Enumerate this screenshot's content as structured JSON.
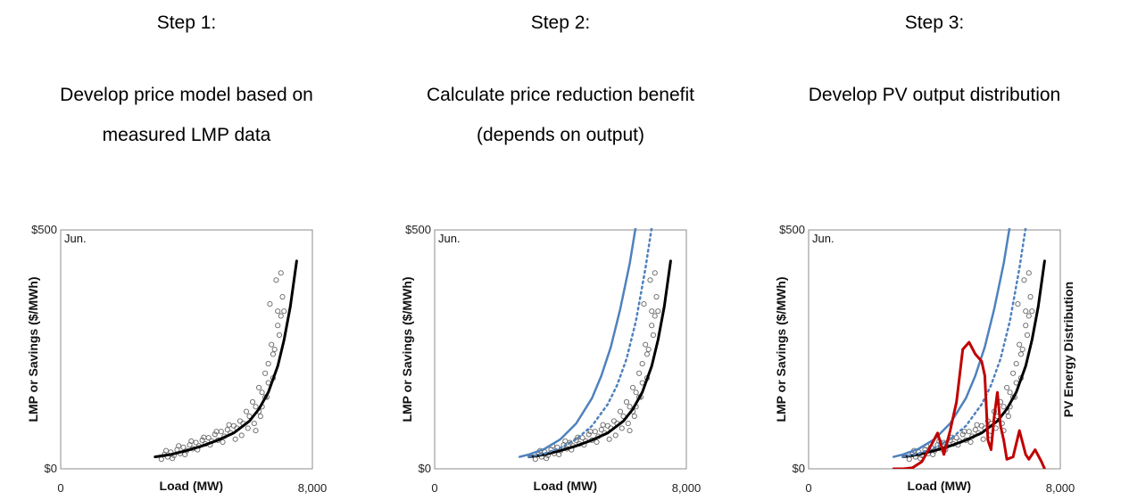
{
  "steps": [
    {
      "title": "Step 1:",
      "description": [
        "Develop price model based on",
        "measured LMP data"
      ]
    },
    {
      "title": "Step 2:",
      "description": [
        "Calculate price reduction benefit",
        "(depends on output)"
      ]
    },
    {
      "title": "Step 3:",
      "description": [
        "Develop PV output distribution",
        ""
      ]
    }
  ],
  "colors": {
    "scatter": "#666666",
    "lmp_model": "#000000",
    "savings": "#4f81bd",
    "pv_distribution": "#c00000"
  },
  "chart_data": [
    {
      "type": "scatter",
      "panel_label": "Jun.",
      "xlabel": "Load (MW)",
      "ylabel": "LMP or Savings ($/MWh)",
      "xlim": [
        0,
        8000
      ],
      "ylim": [
        0,
        500
      ],
      "x_ticks": [
        "0",
        "8,000"
      ],
      "y_ticks": [
        "$0",
        "$500"
      ],
      "grid": false,
      "series": [
        {
          "style": "markers",
          "note": "measured LMP",
          "x": [
            3200,
            3300,
            3400,
            3500,
            3600,
            3700,
            3800,
            3900,
            4000,
            4100,
            4200,
            4300,
            4400,
            4500,
            4600,
            4700,
            4800,
            4900,
            5000,
            5100,
            5200,
            5300,
            5400,
            5500,
            5600,
            5700,
            5800,
            5900,
            6000,
            6100,
            6200,
            6300,
            6400,
            6500,
            6600,
            6700,
            6800,
            6900,
            7000,
            7100,
            3350,
            3550,
            3750,
            3950,
            4150,
            4350,
            4550,
            4750,
            4950,
            5150,
            5350,
            5550,
            5750,
            5950,
            6150,
            6350,
            6550,
            6750,
            6950,
            7050,
            6650,
            6850,
            6900,
            7000,
            6750,
            6400,
            6600,
            6300,
            6500,
            6200
          ],
          "y": [
            20,
            30,
            25,
            35,
            28,
            40,
            32,
            45,
            38,
            50,
            42,
            55,
            48,
            60,
            52,
            65,
            58,
            72,
            60,
            78,
            68,
            82,
            75,
            90,
            85,
            100,
            95,
            120,
            110,
            140,
            130,
            170,
            160,
            200,
            220,
            260,
            250,
            300,
            320,
            330,
            38,
            22,
            48,
            30,
            58,
            40,
            66,
            50,
            78,
            56,
            92,
            62,
            70,
            85,
            95,
            110,
            150,
            190,
            280,
            360,
            345,
            395,
            330,
            410,
            240,
            130,
            180,
            120,
            150,
            80
          ]
        },
        {
          "style": "line",
          "note": "price model",
          "x": [
            3000,
            3500,
            4000,
            4500,
            5000,
            5500,
            6000,
            6300,
            6600,
            6900,
            7100,
            7300,
            7500
          ],
          "y": [
            25,
            30,
            38,
            48,
            60,
            75,
            100,
            125,
            160,
            215,
            270,
            340,
            435
          ]
        }
      ]
    },
    {
      "type": "line",
      "panel_label": "Jun.",
      "xlabel": "Load (MW)",
      "ylabel": "LMP or Savings ($/MWh)",
      "xlim": [
        0,
        8000
      ],
      "ylim": [
        0,
        500
      ],
      "x_ticks": [
        "0",
        "8,000"
      ],
      "y_ticks": [
        "$0",
        "$500"
      ],
      "grid": false,
      "series": [
        {
          "style": "markers",
          "note": "measured LMP",
          "x": [
            3200,
            3300,
            3400,
            3500,
            3600,
            3700,
            3800,
            3900,
            4000,
            4100,
            4200,
            4300,
            4400,
            4500,
            4600,
            4700,
            4800,
            4900,
            5000,
            5100,
            5200,
            5300,
            5400,
            5500,
            5600,
            5700,
            5800,
            5900,
            6000,
            6100,
            6200,
            6300,
            6400,
            6500,
            6600,
            6700,
            6800,
            6900,
            7000,
            7100,
            3350,
            3550,
            3750,
            3950,
            4150,
            4350,
            4550,
            4750,
            4950,
            5150,
            5350,
            5550,
            5750,
            5950,
            6150,
            6350,
            6550,
            6750,
            6950,
            7050,
            6650,
            6850,
            6900,
            7000,
            6750,
            6400,
            6600,
            6300,
            6500,
            6200
          ],
          "y": [
            20,
            30,
            25,
            35,
            28,
            40,
            32,
            45,
            38,
            50,
            42,
            55,
            48,
            60,
            52,
            65,
            58,
            72,
            60,
            78,
            68,
            82,
            75,
            90,
            85,
            100,
            95,
            120,
            110,
            140,
            130,
            170,
            160,
            200,
            220,
            260,
            250,
            300,
            320,
            330,
            38,
            22,
            48,
            30,
            58,
            40,
            66,
            50,
            78,
            56,
            92,
            62,
            70,
            85,
            95,
            110,
            150,
            190,
            280,
            360,
            345,
            395,
            330,
            410,
            240,
            130,
            180,
            120,
            150,
            80
          ]
        },
        {
          "style": "line",
          "note": "price model",
          "x": [
            3000,
            3500,
            4000,
            4500,
            5000,
            5500,
            6000,
            6300,
            6600,
            6900,
            7100,
            7300,
            7500
          ],
          "y": [
            25,
            30,
            38,
            48,
            60,
            75,
            100,
            125,
            160,
            215,
            270,
            340,
            435
          ]
        },
        {
          "style": "line",
          "note": "blue solid",
          "x": [
            2700,
            3000,
            3500,
            4000,
            4500,
            5000,
            5300,
            5600,
            5900,
            6200,
            6400
          ],
          "y": [
            25,
            30,
            42,
            62,
            95,
            148,
            195,
            255,
            335,
            430,
            510
          ]
        },
        {
          "style": "dotted",
          "note": "blue dotted",
          "x": [
            3000,
            3500,
            4000,
            4500,
            5000,
            5500,
            5800,
            6100,
            6400,
            6700,
            6900
          ],
          "y": [
            25,
            32,
            44,
            62,
            90,
            135,
            175,
            230,
            310,
            420,
            505
          ]
        }
      ]
    },
    {
      "type": "line",
      "panel_label": "Jun.",
      "xlabel": "Load (MW)",
      "ylabel": "LMP or Savings ($/MWh)",
      "y2label": "PV Energy Distribution",
      "xlim": [
        0,
        8000
      ],
      "ylim": [
        0,
        500
      ],
      "x_ticks": [
        "0",
        "8,000"
      ],
      "y_ticks": [
        "$0",
        "$500"
      ],
      "grid": false,
      "series": [
        {
          "style": "markers",
          "note": "measured LMP",
          "x": [
            3200,
            3300,
            3400,
            3500,
            3600,
            3700,
            3800,
            3900,
            4000,
            4100,
            4200,
            4300,
            4400,
            4500,
            4600,
            4700,
            4800,
            4900,
            5000,
            5100,
            5200,
            5300,
            5400,
            5500,
            5600,
            5700,
            5800,
            5900,
            6000,
            6100,
            6200,
            6300,
            6400,
            6500,
            6600,
            6700,
            6800,
            6900,
            7000,
            7100,
            3350,
            3550,
            3750,
            3950,
            4150,
            4350,
            4550,
            4750,
            4950,
            5150,
            5350,
            5550,
            5750,
            5950,
            6150,
            6350,
            6550,
            6750,
            6950,
            7050,
            6650,
            6850,
            6900,
            7000,
            6750,
            6400,
            6600,
            6300,
            6500,
            6200
          ],
          "y": [
            20,
            30,
            25,
            35,
            28,
            40,
            32,
            45,
            38,
            50,
            42,
            55,
            48,
            60,
            52,
            65,
            58,
            72,
            60,
            78,
            68,
            82,
            75,
            90,
            85,
            100,
            95,
            120,
            110,
            140,
            130,
            170,
            160,
            200,
            220,
            260,
            250,
            300,
            320,
            330,
            38,
            22,
            48,
            30,
            58,
            40,
            66,
            50,
            78,
            56,
            92,
            62,
            70,
            85,
            95,
            110,
            150,
            190,
            280,
            360,
            345,
            395,
            330,
            410,
            240,
            130,
            180,
            120,
            150,
            80
          ]
        },
        {
          "style": "line",
          "note": "price model",
          "x": [
            3000,
            3500,
            4000,
            4500,
            5000,
            5500,
            6000,
            6300,
            6600,
            6900,
            7100,
            7300,
            7500
          ],
          "y": [
            25,
            30,
            38,
            48,
            60,
            75,
            100,
            125,
            160,
            215,
            270,
            340,
            435
          ]
        },
        {
          "style": "line",
          "note": "blue solid",
          "x": [
            2700,
            3000,
            3500,
            4000,
            4500,
            5000,
            5300,
            5600,
            5900,
            6200,
            6400
          ],
          "y": [
            25,
            30,
            42,
            62,
            95,
            148,
            195,
            255,
            335,
            430,
            510
          ]
        },
        {
          "style": "dotted",
          "note": "blue dotted",
          "x": [
            3000,
            3500,
            4000,
            4500,
            5000,
            5500,
            5800,
            6100,
            6400,
            6700,
            6900
          ],
          "y": [
            25,
            32,
            44,
            62,
            90,
            135,
            175,
            230,
            310,
            420,
            505
          ]
        },
        {
          "style": "line",
          "note": "PV energy distribution",
          "x": [
            2700,
            3000,
            3300,
            3600,
            3900,
            4100,
            4300,
            4500,
            4700,
            4900,
            5100,
            5300,
            5500,
            5600,
            5700,
            5800,
            5900,
            6000,
            6100,
            6200,
            6300,
            6500,
            6700,
            6900,
            7000,
            7200,
            7400,
            7500
          ],
          "y": [
            0,
            0,
            2,
            15,
            50,
            75,
            30,
            80,
            140,
            250,
            265,
            240,
            225,
            195,
            60,
            40,
            110,
            160,
            90,
            60,
            20,
            25,
            80,
            30,
            20,
            40,
            15,
            0
          ]
        }
      ]
    }
  ]
}
